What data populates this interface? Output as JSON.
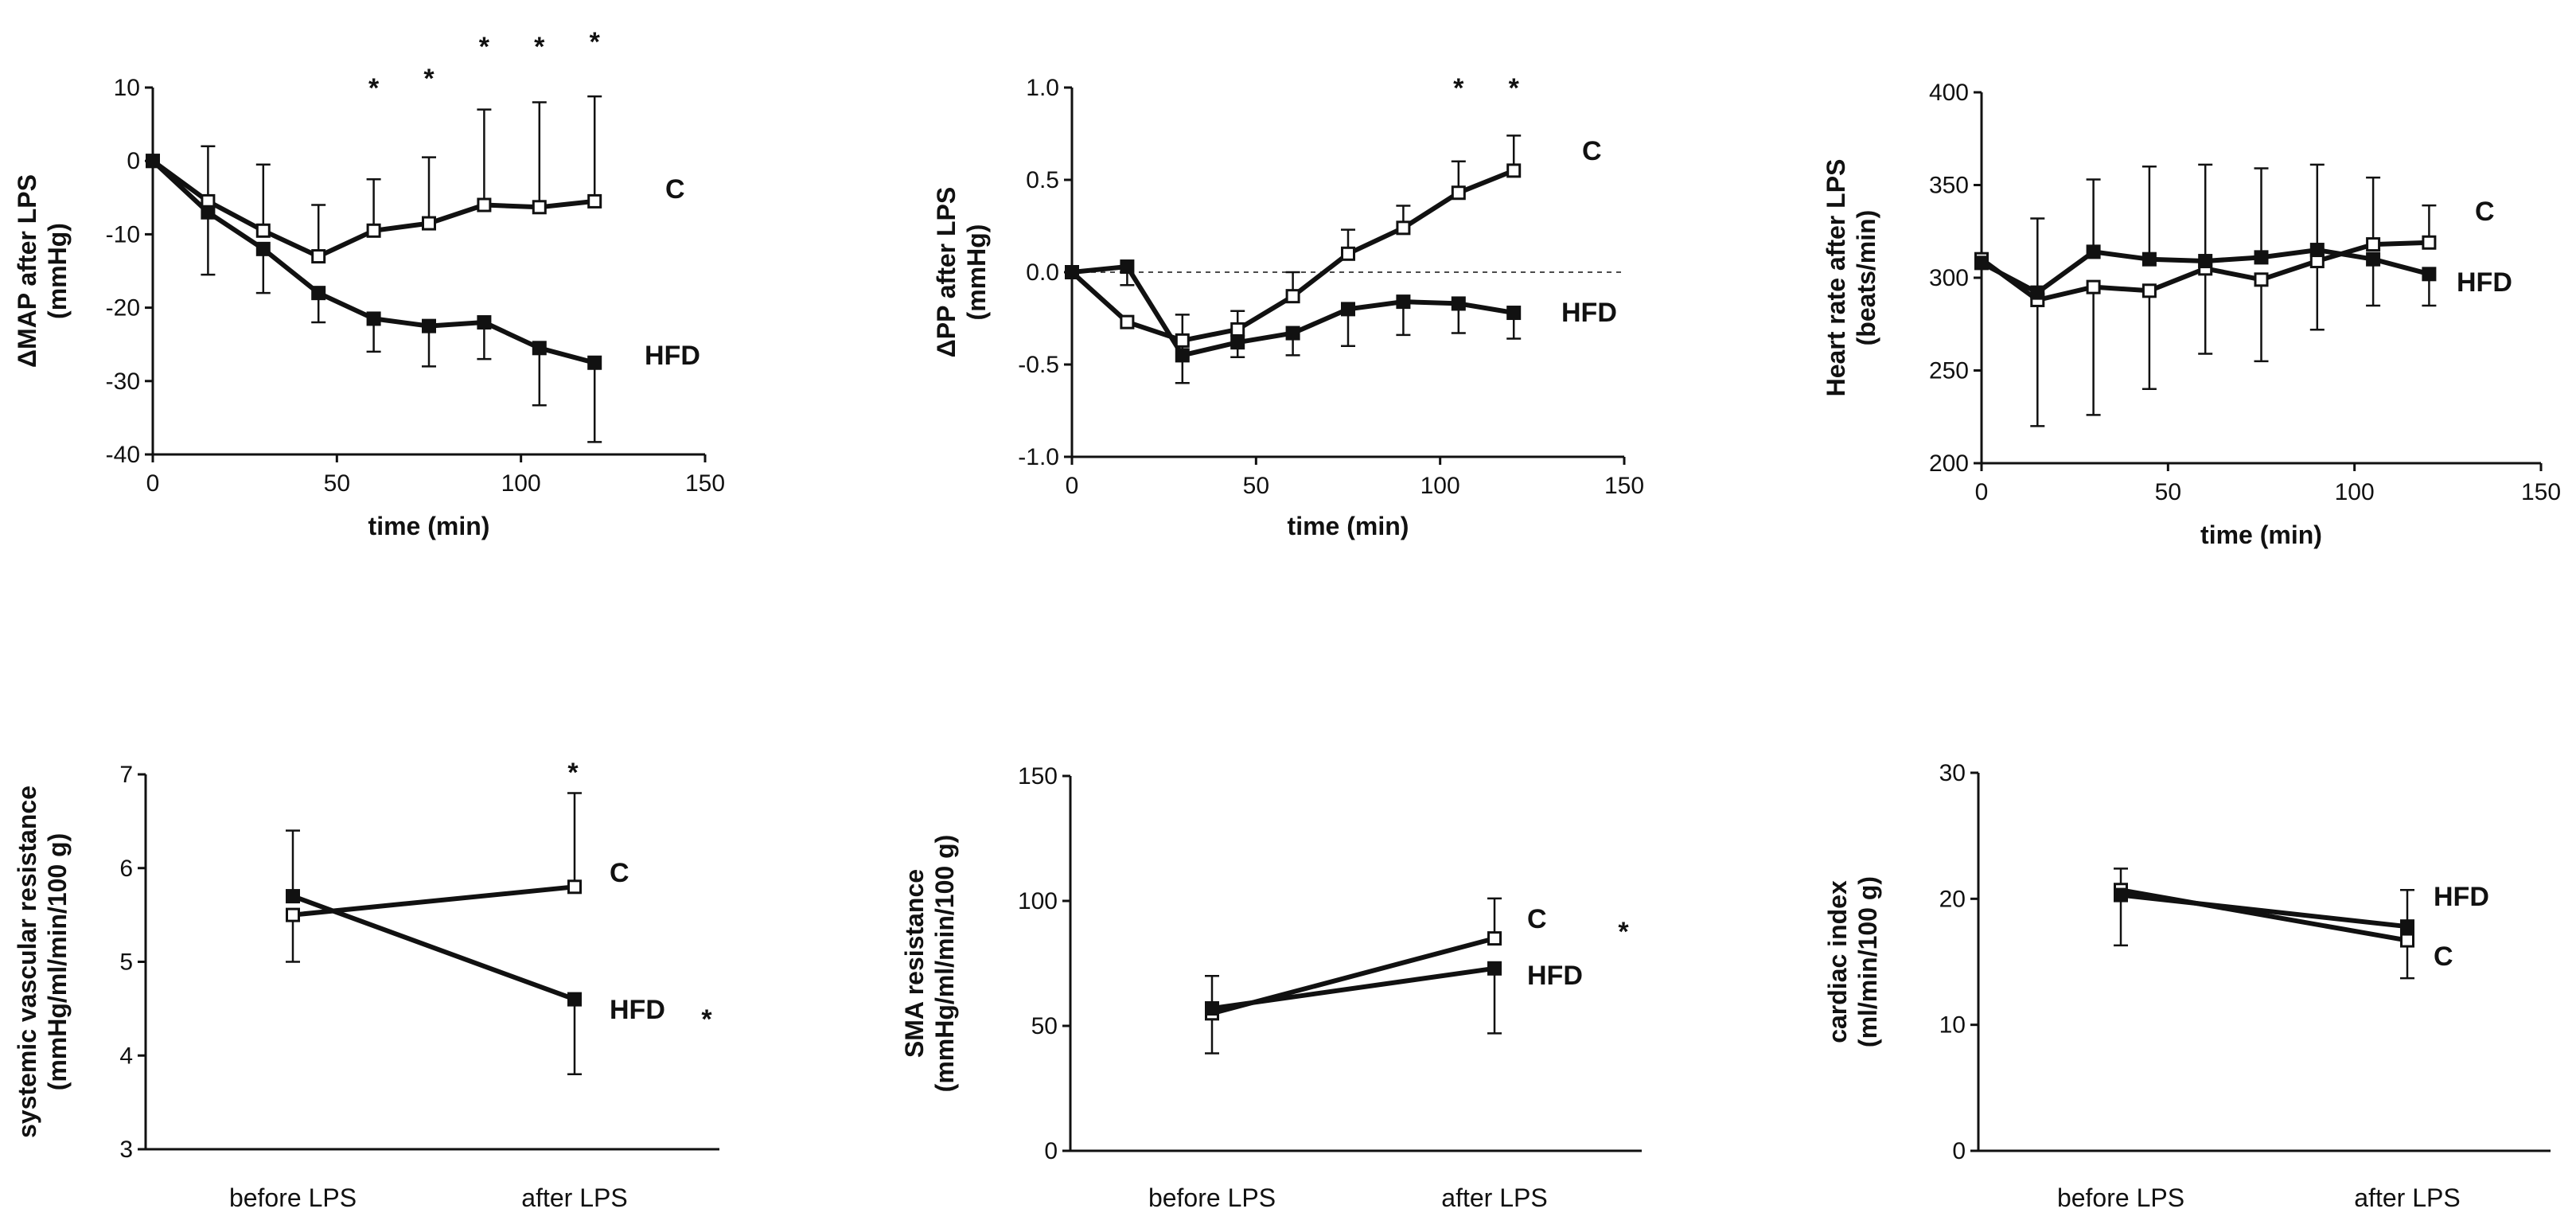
{
  "chart_data": [
    {
      "id": "map",
      "type": "line",
      "xlabel": "time (min)",
      "ylabel": [
        "ΔMAP after LPS",
        "(mmHg)"
      ],
      "xlim": [
        0,
        150
      ],
      "ylim": [
        -40,
        10
      ],
      "xticks": [
        0,
        50,
        100,
        150
      ],
      "yticks": [
        -40,
        -30,
        -20,
        -10,
        0,
        10
      ],
      "x": [
        0,
        15,
        30,
        45,
        60,
        75,
        90,
        105,
        120
      ],
      "series": [
        {
          "name": "C",
          "marker": "open",
          "values": [
            0,
            -5.5,
            -9.5,
            -13,
            -9.5,
            -8.5,
            -6,
            -6.3,
            -5.5
          ],
          "err_upper": [
            0,
            7.5,
            9,
            7,
            7,
            9,
            13,
            14.3,
            14.3
          ],
          "err_lower": [
            0,
            0,
            0,
            0,
            0,
            0,
            0,
            0,
            0
          ]
        },
        {
          "name": "HFD",
          "marker": "filled",
          "values": [
            0,
            -7,
            -12,
            -18,
            -21.5,
            -22.5,
            -22,
            -25.5,
            -27.5
          ],
          "err_upper": [
            0,
            0,
            0,
            0,
            0,
            0,
            0,
            0,
            0
          ],
          "err_lower": [
            0,
            8.5,
            6,
            4,
            4.5,
            5.5,
            5,
            7.8,
            10.8
          ]
        }
      ],
      "annotations": [
        {
          "text": "*",
          "x": 60
        },
        {
          "text": "*",
          "x": 75
        },
        {
          "text": "*",
          "x": 90
        },
        {
          "text": "*",
          "x": 105
        },
        {
          "text": "*",
          "x": 120
        }
      ]
    },
    {
      "id": "pp",
      "type": "line",
      "xlabel": "time (min)",
      "ylabel": [
        "ΔPP after LPS",
        "(mmHg)"
      ],
      "xlim": [
        0,
        150
      ],
      "ylim": [
        -1.0,
        1.0
      ],
      "xticks": [
        0,
        50,
        100,
        150
      ],
      "yticks": [
        -1.0,
        -0.5,
        0.0,
        0.5,
        1.0
      ],
      "ytick_labels": [
        "-1.0",
        "-0.5",
        "0.0",
        "0.5",
        "1.0"
      ],
      "zero_line": true,
      "x": [
        0,
        15,
        30,
        45,
        60,
        75,
        90,
        105,
        120
      ],
      "series": [
        {
          "name": "C",
          "marker": "open",
          "values": [
            0,
            -0.27,
            -0.37,
            -0.31,
            -0.13,
            0.1,
            0.24,
            0.43,
            0.55
          ],
          "err_upper": [
            0,
            0,
            0,
            0,
            0.13,
            0.13,
            0.12,
            0.17,
            0.19
          ],
          "err_lower": [
            0,
            0,
            0,
            0,
            0,
            0,
            0,
            0,
            0
          ]
        },
        {
          "name": "HFD",
          "marker": "filled",
          "values": [
            0,
            0.03,
            -0.45,
            -0.38,
            -0.33,
            -0.2,
            -0.16,
            -0.17,
            -0.22
          ],
          "err_upper": [
            0,
            0,
            0.22,
            0.17,
            0,
            0,
            0,
            0,
            0
          ],
          "err_lower": [
            0,
            0.1,
            0.15,
            0.08,
            0.12,
            0.2,
            0.18,
            0.16,
            0.14
          ]
        }
      ],
      "annotations": [
        {
          "text": "*",
          "x": 105
        },
        {
          "text": "*",
          "x": 120
        }
      ]
    },
    {
      "id": "hr",
      "type": "line",
      "xlabel": "time (min)",
      "ylabel": [
        "Heart rate after LPS",
        "(beats/min)"
      ],
      "xlim": [
        0,
        150
      ],
      "ylim": [
        200,
        400
      ],
      "xticks": [
        0,
        50,
        100,
        150
      ],
      "yticks": [
        200,
        250,
        300,
        350,
        400
      ],
      "x": [
        0,
        15,
        30,
        45,
        60,
        75,
        90,
        105,
        120
      ],
      "series": [
        {
          "name": "C",
          "marker": "open",
          "values": [
            310,
            288,
            295,
            293,
            305,
            299,
            309,
            318,
            319
          ],
          "err_upper": [
            0,
            0,
            0,
            0,
            0,
            0,
            0,
            36,
            20
          ],
          "err_lower": [
            0,
            68,
            69,
            53,
            46,
            44,
            37,
            0,
            0
          ]
        },
        {
          "name": "HFD",
          "marker": "filled",
          "values": [
            308,
            292,
            314,
            310,
            309,
            311,
            315,
            310,
            302
          ],
          "err_upper": [
            0,
            40,
            39,
            50,
            52,
            48,
            46,
            0,
            0
          ],
          "err_lower": [
            0,
            0,
            0,
            0,
            0,
            0,
            0,
            25,
            17
          ]
        }
      ],
      "annotations": []
    },
    {
      "id": "svr",
      "type": "line",
      "xlabel": "",
      "ylabel": [
        "systemic vascular resistance",
        "(mmHg/ml/min/100 g)"
      ],
      "categories": [
        "before LPS",
        "after LPS"
      ],
      "ylim": [
        3,
        7
      ],
      "yticks": [
        3,
        4,
        5,
        6,
        7
      ],
      "series": [
        {
          "name": "C",
          "marker": "open",
          "values": [
            5.5,
            5.8
          ],
          "err_upper": [
            0,
            1.0
          ],
          "err_lower": [
            0.5,
            0
          ]
        },
        {
          "name": "HFD",
          "marker": "filled",
          "values": [
            5.7,
            4.6
          ],
          "err_upper": [
            0.7,
            0
          ],
          "err_lower": [
            0,
            0.8
          ]
        }
      ],
      "annotations": [
        {
          "text": "*",
          "where": "above-after"
        },
        {
          "text": "*",
          "where": "beside-HFD"
        }
      ]
    },
    {
      "id": "sma",
      "type": "line",
      "xlabel": "",
      "ylabel": [
        "SMA resistance",
        "(mmHg/ml/min/100 g)"
      ],
      "categories": [
        "before LPS",
        "after LPS"
      ],
      "ylim": [
        0,
        150
      ],
      "yticks": [
        0,
        50,
        100,
        150
      ],
      "series": [
        {
          "name": "C",
          "marker": "open",
          "values": [
            55,
            85
          ],
          "err_upper": [
            0,
            16
          ],
          "err_lower": [
            16,
            0
          ]
        },
        {
          "name": "HFD",
          "marker": "filled",
          "values": [
            57,
            73
          ],
          "err_upper": [
            13,
            0
          ],
          "err_lower": [
            0,
            26
          ]
        }
      ],
      "annotations": [
        {
          "text": "*",
          "where": "beside-C"
        }
      ]
    },
    {
      "id": "ci",
      "type": "line",
      "xlabel": "",
      "ylabel": [
        "cardiac index",
        "(ml/min/100 g)"
      ],
      "categories": [
        "before LPS",
        "after LPS"
      ],
      "ylim": [
        0,
        30
      ],
      "yticks": [
        0,
        10,
        20,
        30
      ],
      "series": [
        {
          "name": "C",
          "marker": "open",
          "values": [
            20.7,
            16.7
          ],
          "err_upper": [
            1.7,
            0
          ],
          "err_lower": [
            0,
            3
          ]
        },
        {
          "name": "HFD",
          "marker": "filled",
          "values": [
            20.3,
            17.8
          ],
          "err_upper": [
            0,
            2.9
          ],
          "err_lower": [
            4,
            0
          ]
        }
      ],
      "annotations": []
    }
  ]
}
